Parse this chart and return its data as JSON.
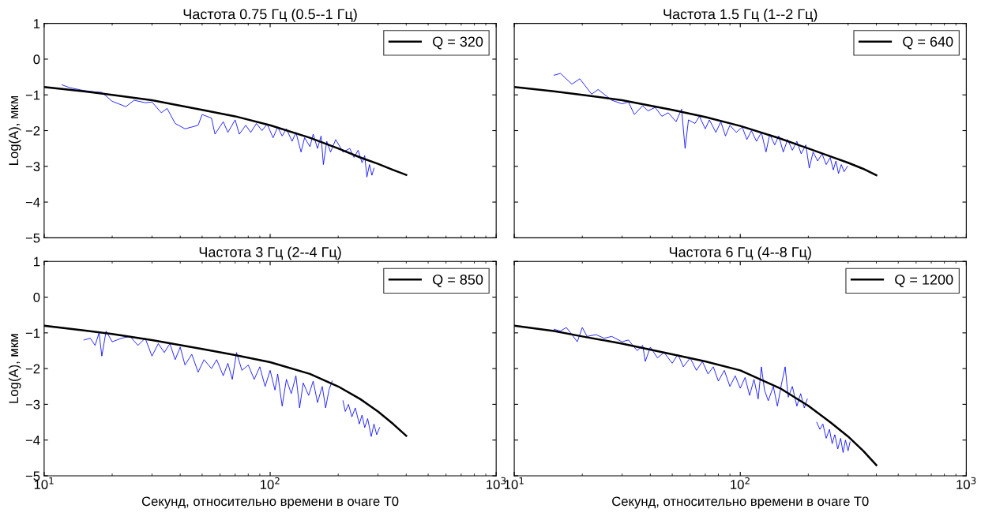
{
  "chart_data": [
    {
      "type": "line",
      "title": "Частота 0.75 Гц (0.5--1 Гц)",
      "ylabel": "Log(A), мкм",
      "log": "x",
      "legend": "top right",
      "tick_labels": "y",
      "xlim": [
        10,
        1000
      ],
      "ylim": [
        -5,
        1
      ],
      "yticks": [
        -5,
        -4,
        -3,
        -2,
        -1,
        0,
        1
      ],
      "xticks": [
        {
          "value": 10,
          "label": null
        },
        {
          "value": 100,
          "label": null
        },
        {
          "value": 1000,
          "label": null
        }
      ],
      "series": [
        {
          "color": "#0000ff",
          "x": [
            12,
            13,
            15,
            17,
            18,
            20,
            23,
            25,
            28,
            30,
            33,
            35,
            38,
            42,
            45,
            48,
            50,
            55,
            57,
            62,
            65,
            70,
            73,
            78,
            82,
            87,
            92,
            97,
            103,
            108,
            113,
            118,
            125,
            130,
            137,
            142,
            150,
            155,
            162,
            168,
            172,
            178,
            185,
            195,
            210,
            225,
            235,
            245,
            255,
            262,
            268,
            275,
            282,
            288
          ],
          "values": [
            -0.72,
            -0.8,
            -0.88,
            -0.92,
            -0.93,
            -1.18,
            -1.33,
            -1.15,
            -1.22,
            -1.2,
            -1.5,
            -1.38,
            -1.8,
            -1.95,
            -1.9,
            -1.85,
            -1.55,
            -1.65,
            -2.1,
            -1.75,
            -2.05,
            -1.7,
            -2.1,
            -1.85,
            -2.05,
            -1.8,
            -2.0,
            -1.82,
            -2.2,
            -1.9,
            -2.15,
            -1.95,
            -2.3,
            -2.05,
            -2.6,
            -2.2,
            -2.45,
            -2.1,
            -2.5,
            -2.15,
            -2.95,
            -2.3,
            -2.6,
            -2.25,
            -2.6,
            -2.5,
            -2.75,
            -2.55,
            -2.9,
            -2.7,
            -3.3,
            -2.95,
            -3.25,
            -3.05
          ]
        },
        {
          "name": "Q = 320",
          "color": "#000000",
          "x": [
            10,
            15,
            20,
            30,
            50,
            70,
            100,
            150,
            200,
            250,
            300,
            350,
            400
          ],
          "values": [
            -0.78,
            -0.9,
            -1.0,
            -1.15,
            -1.42,
            -1.6,
            -1.85,
            -2.2,
            -2.5,
            -2.75,
            -2.93,
            -3.1,
            -3.24
          ]
        }
      ]
    },
    {
      "type": "line",
      "title": "Частота 1.5 Гц (1--2 Гц)",
      "log": "x",
      "legend": "top right",
      "tick_labels": false,
      "xlim": [
        10,
        1000
      ],
      "ylim": [
        -5,
        1
      ],
      "yticks": [
        -5,
        -4,
        -3,
        -2,
        -1,
        0,
        1
      ],
      "xticks": [
        {
          "value": 10,
          "label": null
        },
        {
          "value": 100,
          "label": null
        },
        {
          "value": 1000,
          "label": null
        }
      ],
      "series": [
        {
          "color": "#0000ff",
          "x": [
            15,
            16,
            18,
            19.5,
            22,
            23.5,
            27,
            30,
            32,
            34,
            37,
            39,
            42,
            45,
            48,
            52,
            55,
            57,
            59,
            63,
            66,
            70,
            73,
            78,
            82,
            86,
            90,
            96,
            102,
            107,
            112,
            118,
            124,
            130,
            135,
            142,
            148,
            155,
            162,
            170,
            178,
            186,
            195,
            202,
            210,
            220,
            230,
            240,
            250,
            258,
            265,
            272,
            280,
            288,
            298
          ],
          "values": [
            -0.45,
            -0.4,
            -0.7,
            -0.55,
            -0.98,
            -0.85,
            -1.15,
            -1.25,
            -1.2,
            -1.55,
            -1.3,
            -1.45,
            -1.35,
            -1.6,
            -1.5,
            -1.75,
            -1.4,
            -2.5,
            -1.7,
            -1.8,
            -1.6,
            -1.95,
            -1.7,
            -2.05,
            -1.75,
            -2.15,
            -1.85,
            -2.05,
            -1.9,
            -2.25,
            -2.0,
            -2.3,
            -2.05,
            -2.6,
            -2.1,
            -2.4,
            -2.15,
            -2.6,
            -2.25,
            -2.55,
            -2.3,
            -2.65,
            -2.4,
            -3.05,
            -2.6,
            -2.85,
            -2.65,
            -2.95,
            -2.75,
            -3.1,
            -2.85,
            -3.2,
            -2.95,
            -3.15,
            -3.0
          ]
        },
        {
          "name": "Q = 640",
          "color": "#000000",
          "x": [
            10,
            15,
            20,
            30,
            50,
            70,
            100,
            150,
            200,
            250,
            300,
            350,
            400
          ],
          "values": [
            -0.78,
            -0.9,
            -1.0,
            -1.15,
            -1.42,
            -1.62,
            -1.87,
            -2.22,
            -2.5,
            -2.72,
            -2.9,
            -3.07,
            -3.25
          ]
        }
      ]
    },
    {
      "type": "line",
      "title": "Частота 3 Гц (2--4 Гц)",
      "xlabel": "Секунд, относительно времени в очаге T0",
      "ylabel": "Log(A), мкм",
      "log": "x",
      "legend": "top right",
      "xlim": [
        10,
        1000
      ],
      "ylim": [
        -5,
        1
      ],
      "yticks": [
        -5,
        -4,
        -3,
        -2,
        -1,
        0,
        1
      ],
      "xticks": [
        {
          "value": 10,
          "label": "10$^{1}$"
        },
        {
          "value": 100,
          "label": "10$^{2}$"
        },
        {
          "value": 1000,
          "label": "10$^{3}$"
        }
      ],
      "series": [
        {
          "color": "#0000ff",
          "x": [
            15,
            16,
            16.8,
            17.5,
            18,
            18.8,
            20,
            22,
            24,
            26,
            28,
            30,
            32,
            34,
            36,
            38,
            40,
            42,
            45,
            48,
            51,
            55,
            58,
            62,
            65,
            68,
            71,
            75,
            80,
            85,
            90,
            95,
            100,
            105,
            108,
            113,
            118,
            124,
            130,
            135,
            140,
            148,
            155,
            162,
            170,
            176,
            182,
            188,
            198,
            210,
            215,
            222,
            230,
            238,
            248,
            255,
            262,
            270,
            280,
            288,
            296,
            305
          ],
          "values": [
            -1.2,
            -1.15,
            -1.35,
            -1.0,
            -1.65,
            -0.95,
            -1.25,
            -1.15,
            -1.1,
            -1.35,
            -1.15,
            -1.65,
            -1.3,
            -1.55,
            -1.3,
            -1.75,
            -1.4,
            -1.9,
            -1.6,
            -2.1,
            -1.75,
            -2.0,
            -1.75,
            -2.2,
            -1.85,
            -2.3,
            -1.55,
            -2.05,
            -1.9,
            -2.3,
            -1.95,
            -2.5,
            -2.05,
            -2.6,
            -2.15,
            -3.05,
            -2.3,
            -2.7,
            -2.2,
            -3.1,
            -2.4,
            -2.75,
            -2.35,
            -2.95,
            -2.5,
            -3.1,
            -2.6,
            -2.35,
            null,
            -2.9,
            -3.2,
            -3.0,
            -3.35,
            -3.1,
            -3.55,
            -3.3,
            -3.65,
            -3.4,
            -3.9,
            -3.55,
            -3.85,
            -3.65
          ]
        },
        {
          "name": "Q = 850",
          "color": "#000000",
          "x": [
            10,
            15,
            20,
            30,
            50,
            70,
            100,
            150,
            200,
            250,
            300,
            350,
            400
          ],
          "values": [
            -0.8,
            -0.93,
            -1.03,
            -1.2,
            -1.45,
            -1.62,
            -1.82,
            -2.15,
            -2.5,
            -2.85,
            -3.2,
            -3.55,
            -3.88
          ]
        }
      ]
    },
    {
      "type": "line",
      "title": "Частота 6 Гц (4--8 Гц)",
      "xlabel": "Секунд, относительно времени в очаге T0",
      "log": "x",
      "legend": "top right",
      "tick_labels": "x",
      "xlim": [
        10,
        1000
      ],
      "ylim": [
        -5,
        1
      ],
      "yticks": [
        -5,
        -4,
        -3,
        -2,
        -1,
        0,
        1
      ],
      "xticks": [
        {
          "value": 10,
          "label": "10$^{1}$"
        },
        {
          "value": 100,
          "label": "10$^{2}$"
        },
        {
          "value": 1000,
          "label": "10$^{3}$"
        }
      ],
      "series": [
        {
          "color": "#0000ff",
          "x": [
            15,
            16,
            17,
            18,
            19,
            20,
            21,
            23,
            25,
            27,
            30,
            32,
            35,
            37,
            38,
            40,
            43,
            46,
            50,
            53,
            56,
            60,
            64,
            68,
            72,
            76,
            80,
            85,
            90,
            95,
            100,
            105,
            110,
            115,
            120,
            124,
            128,
            133,
            140,
            146,
            152,
            158,
            163,
            170,
            178,
            185,
            192,
            198,
            205,
            218,
            225,
            232,
            240,
            248,
            255,
            262,
            270,
            278,
            285,
            292,
            300,
            306
          ],
          "values": [
            -0.9,
            -0.95,
            -0.85,
            -1.05,
            -1.25,
            -0.85,
            -1.1,
            -1.05,
            -1.15,
            -1.1,
            -1.25,
            -1.2,
            -1.5,
            -1.35,
            -1.8,
            -1.4,
            -1.7,
            -1.55,
            -1.85,
            -1.6,
            -1.95,
            -1.7,
            -2.05,
            -1.8,
            -2.15,
            -1.95,
            -2.35,
            -2.05,
            -2.5,
            -2.2,
            -2.55,
            -2.25,
            -2.75,
            -2.3,
            -2.85,
            -1.95,
            -2.6,
            -2.9,
            -2.5,
            -3.05,
            -2.45,
            -1.95,
            -2.8,
            -2.5,
            -3.05,
            -2.7,
            -3.1,
            -2.85,
            null,
            -3.5,
            -3.7,
            -3.55,
            -3.95,
            -3.7,
            -4.1,
            -3.85,
            -4.25,
            -3.95,
            -4.35,
            -4.0,
            -4.3,
            -4.05
          ]
        },
        {
          "name": "Q = 1200",
          "color": "#000000",
          "x": [
            10,
            15,
            20,
            30,
            50,
            70,
            100,
            150,
            200,
            250,
            300,
            350,
            400
          ],
          "values": [
            -0.8,
            -0.95,
            -1.1,
            -1.3,
            -1.6,
            -1.8,
            -2.05,
            -2.55,
            -3.04,
            -3.5,
            -3.9,
            -4.3,
            -4.7
          ]
        }
      ]
    }
  ]
}
